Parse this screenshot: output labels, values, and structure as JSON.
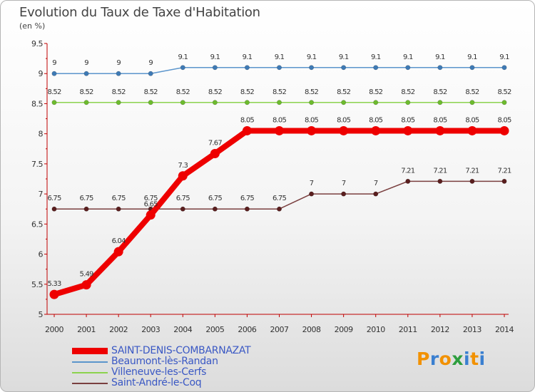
{
  "chart_data": {
    "type": "line",
    "title": "Evolution du Taux de Taxe d'Habitation",
    "subtitle": "(en %)",
    "xlabel": "",
    "ylabel": "",
    "ylim": [
      5,
      9.5
    ],
    "yticks": [
      "5",
      "5.5",
      "6",
      "6.5",
      "7",
      "7.5",
      "8",
      "8.5",
      "9",
      "9.5"
    ],
    "grid": false,
    "legend_position": "bottom-left",
    "categories": [
      "2000",
      "2001",
      "2002",
      "2003",
      "2004",
      "2005",
      "2006",
      "2007",
      "2008",
      "2009",
      "2010",
      "2011",
      "2012",
      "2013",
      "2014"
    ],
    "series": [
      {
        "name": "Beaumont-lès-Randan",
        "color": "#5B95CC",
        "dot_color": "#3E7AB5",
        "values": [
          9,
          9,
          9,
          9,
          9.1,
          9.1,
          9.1,
          9.1,
          9.1,
          9.1,
          9.1,
          9.1,
          9.1,
          9.1,
          9.1
        ],
        "labels": [
          "9",
          "9",
          "9",
          "9",
          "9.1",
          "9.1",
          "9.1",
          "9.1",
          "9.1",
          "9.1",
          "9.1",
          "9.1",
          "9.1",
          "9.1",
          "9.1"
        ]
      },
      {
        "name": "Villeneuve-les-Cerfs",
        "color": "#8CD34E",
        "dot_color": "#6DBB2E",
        "values": [
          8.52,
          8.52,
          8.52,
          8.52,
          8.52,
          8.52,
          8.52,
          8.52,
          8.52,
          8.52,
          8.52,
          8.52,
          8.52,
          8.52,
          8.52
        ],
        "labels": [
          "8.52",
          "8.52",
          "8.52",
          "8.52",
          "8.52",
          "8.52",
          "8.52",
          "8.52",
          "8.52",
          "8.52",
          "8.52",
          "8.52",
          "8.52",
          "8.52",
          "8.52"
        ]
      },
      {
        "name": "Saint-André-le-Coq",
        "color": "#7A3F3F",
        "dot_color": "#5A1E1E",
        "values": [
          6.75,
          6.75,
          6.75,
          6.75,
          6.75,
          6.75,
          6.75,
          6.75,
          7,
          7,
          7,
          7.21,
          7.21,
          7.21,
          7.21
        ],
        "labels": [
          "6.75",
          "6.75",
          "6.75",
          "6.75",
          "6.75",
          "6.75",
          "6.75",
          "6.75",
          "7",
          "7",
          "7",
          "7.21",
          "7.21",
          "7.21",
          "7.21"
        ]
      },
      {
        "name": "SAINT-DENIS-COMBARNAZAT",
        "color": "#EE0000",
        "dot_color": "#EE0000",
        "values": [
          5.33,
          5.49,
          6.04,
          6.65,
          7.3,
          7.67,
          8.05,
          8.05,
          8.05,
          8.05,
          8.05,
          8.05,
          8.05,
          8.05,
          8.05
        ],
        "labels": [
          "5.33",
          "5.49",
          "6.04",
          "6.65",
          "7.3",
          "7.67",
          "8.05",
          "8.05",
          "8.05",
          "8.05",
          "8.05",
          "8.05",
          "8.05",
          "8.05",
          "8.05"
        ]
      }
    ]
  },
  "legend": {
    "items": [
      {
        "label": "SAINT-DENIS-COMBARNAZAT",
        "color": "#EE0000"
      },
      {
        "label": "Beaumont-lès-Randan",
        "color": "#5B95CC"
      },
      {
        "label": "Villeneuve-les-Cerfs",
        "color": "#8CD34E"
      },
      {
        "label": "Saint-André-le-Coq",
        "color": "#7A3F3F"
      }
    ]
  },
  "brand": {
    "logo_letters": [
      "P",
      "r",
      "o",
      "x",
      "i",
      "t",
      "i"
    ],
    "logo_colors": [
      "#F29100",
      "#3A7FD0",
      "#F29100",
      "#2E9E3E",
      "#3A7FD0",
      "#F29100",
      "#3A7FD0"
    ]
  }
}
